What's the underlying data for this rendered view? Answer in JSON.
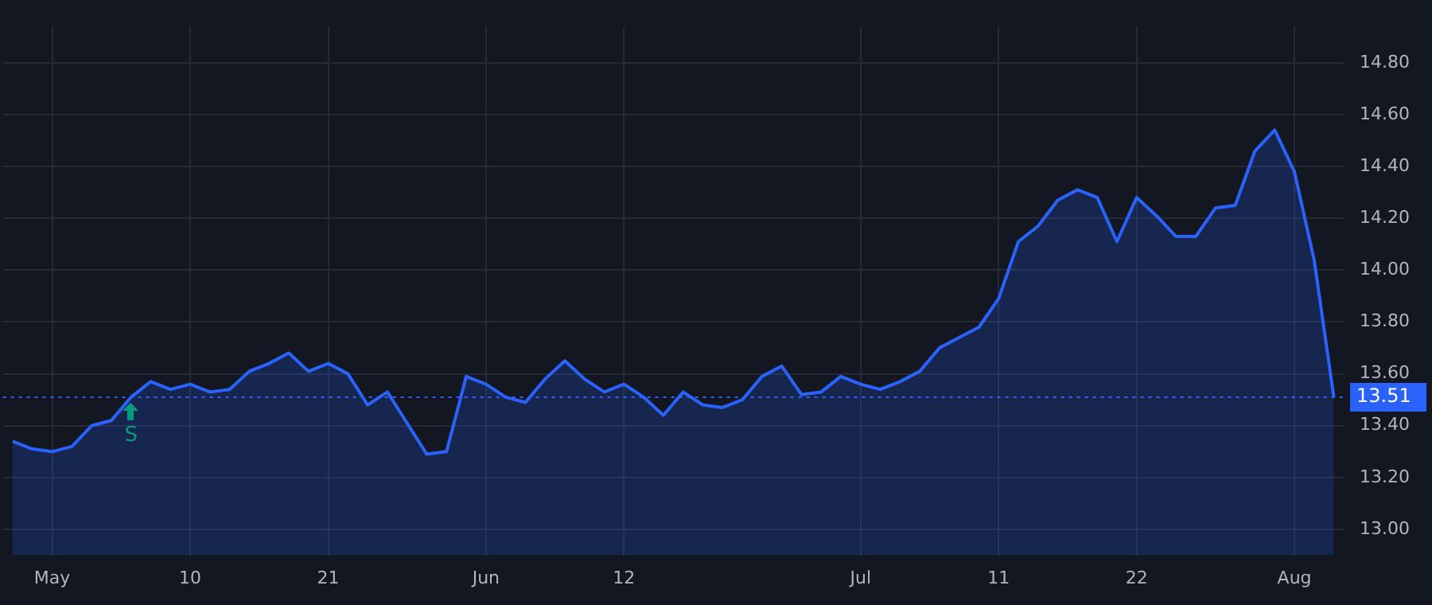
{
  "chart_data": {
    "type": "area",
    "categories": [
      null,
      null,
      "May",
      null,
      null,
      null,
      null,
      null,
      null,
      "10",
      null,
      null,
      null,
      null,
      null,
      null,
      "21",
      null,
      null,
      null,
      null,
      null,
      null,
      null,
      "Jun",
      null,
      null,
      null,
      null,
      null,
      null,
      "12",
      null,
      null,
      null,
      null,
      null,
      null,
      null,
      null,
      null,
      null,
      null,
      "Jul",
      null,
      null,
      null,
      null,
      null,
      null,
      "11",
      null,
      null,
      null,
      null,
      null,
      null,
      "22",
      null,
      null,
      null,
      null,
      null,
      null,
      null,
      "Aug",
      null,
      null
    ],
    "series": [
      {
        "color": "#2962ff",
        "values": [
          13.34,
          13.31,
          13.3,
          13.32,
          13.4,
          13.42,
          13.51,
          13.57,
          13.54,
          13.56,
          13.53,
          13.54,
          13.61,
          13.64,
          13.68,
          13.61,
          13.64,
          13.6,
          13.48,
          13.53,
          13.41,
          13.29,
          13.3,
          13.59,
          13.56,
          13.51,
          13.49,
          13.58,
          13.65,
          13.58,
          13.53,
          13.56,
          13.51,
          13.44,
          13.53,
          13.48,
          13.47,
          13.5,
          13.59,
          13.63,
          13.52,
          13.53,
          13.59,
          13.56,
          13.54,
          13.57,
          13.61,
          13.7,
          13.74,
          13.78,
          13.89,
          14.11,
          14.17,
          14.27,
          14.31,
          14.28,
          14.11,
          14.28,
          14.21,
          14.13,
          14.13,
          14.24,
          14.25,
          14.46,
          14.54,
          14.38,
          14.04,
          13.51
        ]
      }
    ],
    "ylim": [
      12.9,
      14.94
    ],
    "yticks": [
      {
        "value": 13,
        "label": "13.00"
      },
      {
        "value": 13.2,
        "label": "13.20"
      },
      {
        "value": 13.4,
        "label": "13.40"
      },
      {
        "value": 13.6,
        "label": "13.60"
      },
      {
        "value": 13.8,
        "label": "13.80"
      },
      {
        "value": 14,
        "label": "14.00"
      },
      {
        "value": 14.2,
        "label": "14.20"
      },
      {
        "value": 14.4,
        "label": "14.40"
      },
      {
        "value": 14.6,
        "label": "14.60"
      },
      {
        "value": 14.8,
        "label": "14.80"
      }
    ],
    "grid": true,
    "ref_lines": [
      {
        "axis": "y",
        "value": 13.51,
        "label": "13.51",
        "color": "#2962ff",
        "line_style": "dotted"
      }
    ],
    "annotations": [
      {
        "text": "S",
        "y": 13.51
      }
    ]
  }
}
